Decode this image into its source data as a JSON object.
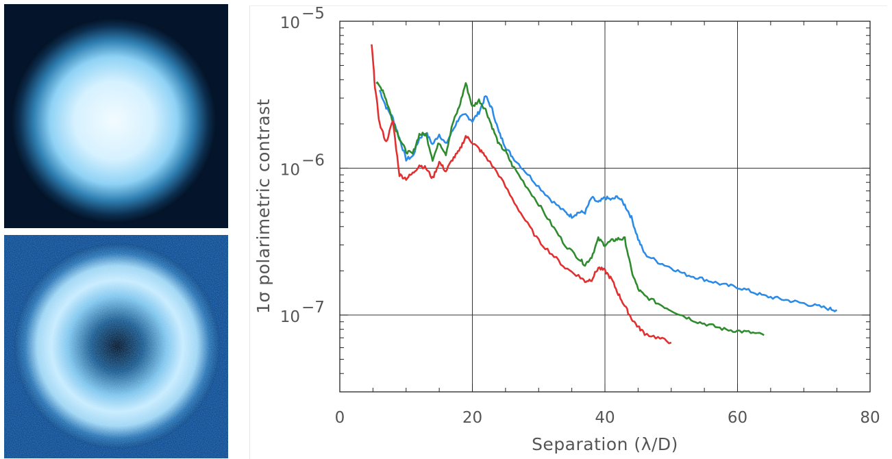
{
  "images": {
    "top": {
      "name": "pupil-image-top",
      "accent": "#aee3ff"
    },
    "bottom": {
      "name": "pupil-image-bottom",
      "accent": "#0b4f95"
    }
  },
  "chart_data": {
    "type": "line",
    "title": "",
    "xlabel": "Separation (λ/D)",
    "ylabel": "1σ polarimetric contrast",
    "xlim": [
      0,
      80
    ],
    "ylim": [
      3e-08,
      1e-05
    ],
    "yscale": "log",
    "grid": true,
    "x_ticks": [
      0,
      20,
      40,
      60,
      80
    ],
    "x_tick_labels": [
      "0",
      "20",
      "40",
      "60",
      "80"
    ],
    "y_ticks": [
      1e-07,
      1e-06,
      1e-05
    ],
    "y_tick_labels": [
      {
        "base": "10",
        "exp": "−7"
      },
      {
        "base": "10",
        "exp": "−6"
      },
      {
        "base": "10",
        "exp": "−5"
      }
    ],
    "series": [
      {
        "color": "#2b8be6",
        "x": [
          6,
          7,
          8,
          9,
          10,
          11,
          12,
          13,
          14,
          15,
          16,
          17,
          18,
          19,
          20,
          21,
          22,
          23,
          24,
          25,
          26,
          28,
          30,
          32,
          34,
          35,
          36,
          37,
          38,
          39,
          40,
          41,
          42,
          43,
          44,
          45,
          46,
          48,
          50,
          52,
          54,
          56,
          58,
          60,
          62,
          64,
          66,
          68,
          70,
          72,
          74,
          75
        ],
        "y": [
          3.4e-06,
          2.6e-06,
          2.2e-06,
          1.6e-06,
          1.15e-06,
          1.2e-06,
          1.6e-06,
          1.75e-06,
          1.45e-06,
          1.7e-06,
          1.45e-06,
          1.8e-06,
          2.2e-06,
          2.3e-06,
          2.1e-06,
          2.4e-06,
          3.1e-06,
          2.5e-06,
          1.75e-06,
          1.4e-06,
          1.2e-06,
          9.5e-07,
          7.5e-07,
          6e-07,
          5e-07,
          4.7e-07,
          5e-07,
          5e-07,
          6.3e-07,
          5.8e-07,
          6.3e-07,
          6.1e-07,
          6.4e-07,
          5.6e-07,
          4.6e-07,
          3.3e-07,
          2.6e-07,
          2.3e-07,
          2.1e-07,
          1.9e-07,
          1.8e-07,
          1.7e-07,
          1.6e-07,
          1.55e-07,
          1.45e-07,
          1.35e-07,
          1.3e-07,
          1.25e-07,
          1.2e-07,
          1.15e-07,
          1.1e-07,
          1.08e-07
        ]
      },
      {
        "color": "#2e8b2e",
        "x": [
          5.5,
          6.5,
          7,
          8,
          9,
          10,
          11,
          12,
          13,
          14,
          15,
          16,
          17,
          18,
          19,
          20,
          21,
          22,
          23,
          24,
          25,
          26,
          28,
          30,
          32,
          34,
          36,
          37,
          38,
          39,
          40,
          41,
          42,
          43,
          44,
          45,
          46,
          48,
          50,
          52,
          54,
          56,
          58,
          60,
          62,
          64
        ],
        "y": [
          3.8e-06,
          3.4e-06,
          2.9e-06,
          2.1e-06,
          1.6e-06,
          1.3e-06,
          1.25e-06,
          1.7e-06,
          1.7e-06,
          1.15e-06,
          1.5e-06,
          1.25e-06,
          2e-06,
          2.6e-06,
          3.8e-06,
          2.6e-06,
          2.9e-06,
          2.5e-06,
          1.9e-06,
          1.45e-06,
          1.3e-06,
          1.05e-06,
          7.7e-07,
          5.7e-07,
          4.1e-07,
          3e-07,
          2.45e-07,
          2.2e-07,
          2.5e-07,
          3.3e-07,
          3e-07,
          3.2e-07,
          3.3e-07,
          3.3e-07,
          2e-07,
          1.5e-07,
          1.35e-07,
          1.2e-07,
          1.08e-07,
          9.8e-08,
          9e-08,
          8.5e-08,
          8e-08,
          7.8e-08,
          7.6e-08,
          7.3e-08
        ]
      },
      {
        "color": "#e03030",
        "x": [
          4.8,
          5.3,
          6,
          7,
          8,
          9,
          10,
          11,
          12,
          13,
          14,
          15,
          16,
          17,
          18,
          19,
          20,
          21,
          22,
          24,
          26,
          28,
          30,
          32,
          34,
          36,
          37,
          38,
          39,
          40,
          41,
          42,
          43,
          44,
          45,
          46,
          48,
          50
        ],
        "y": [
          7e-06,
          3.6e-06,
          2e-06,
          1.5e-06,
          2.1e-06,
          9e-07,
          8.5e-07,
          9.2e-07,
          1.05e-06,
          1e-06,
          8.5e-07,
          1.1e-06,
          9.5e-07,
          1.15e-06,
          1.3e-06,
          1.65e-06,
          1.5e-06,
          1.35e-06,
          1.2e-06,
          9e-07,
          6.2e-07,
          4.4e-07,
          3.2e-07,
          2.6e-07,
          2.1e-07,
          1.85e-07,
          1.7e-07,
          1.75e-07,
          2.1e-07,
          2e-07,
          1.75e-07,
          1.4e-07,
          1.15e-07,
          9.5e-08,
          8.3e-08,
          7.5e-08,
          7e-08,
          6.5e-08
        ]
      }
    ]
  }
}
